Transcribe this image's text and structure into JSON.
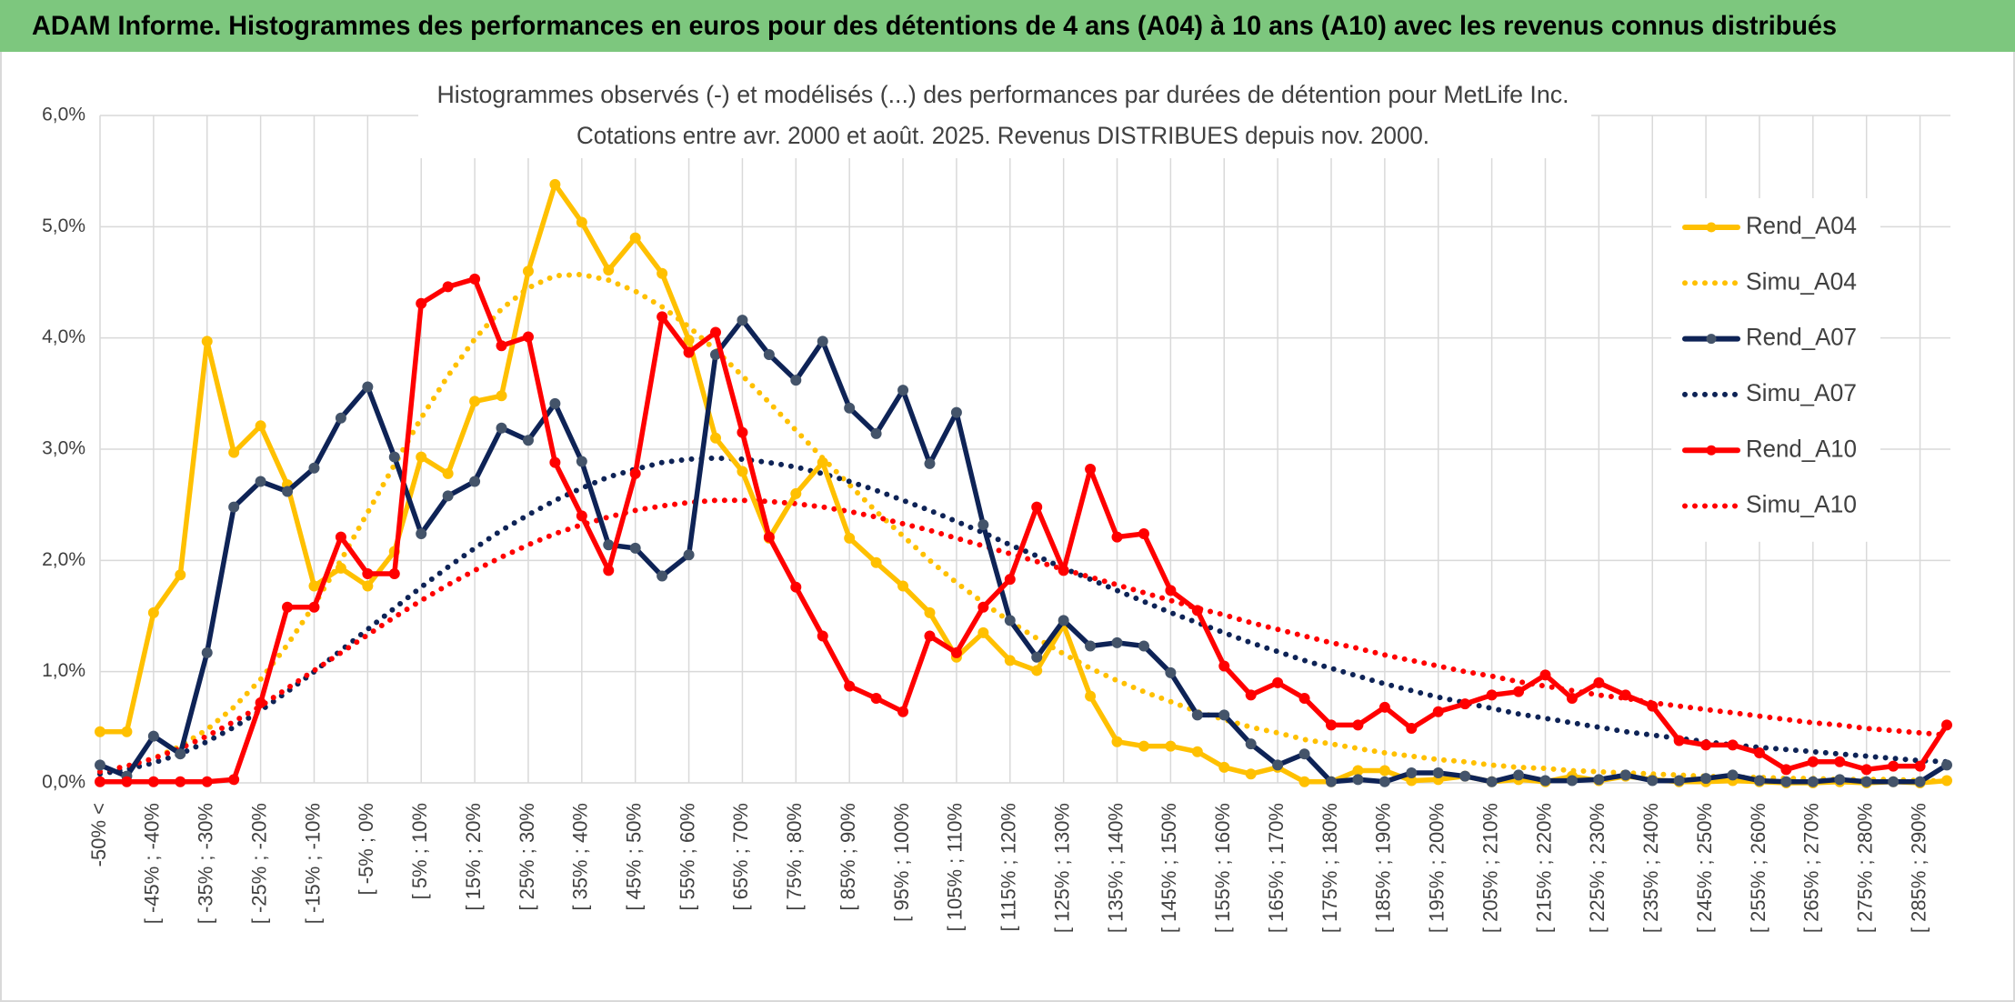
{
  "header": {
    "title": "ADAM Informe. Histogrammes des performances en euros pour des détentions de 4 ans (A04) à 10 ans (A10) avec les revenus connus distribués"
  },
  "chart_data": {
    "type": "line",
    "title": "Histogrammes observés (-) et modélisés (...) des performances par durées de détention pour MetLife Inc.",
    "subtitle": "Cotations entre avr. 2000 et août. 2025. Revenus DISTRIBUES depuis nov. 2000.",
    "categories": [
      "-50% <",
      null,
      "[ -45% ; -40%",
      null,
      "[ -35% ; -30%",
      null,
      "[ -25% ; -20%",
      null,
      "[ -15% ; -10%",
      null,
      "[ -5% ; 0%",
      null,
      "[ 5% ; 10%",
      null,
      "[ 15% ; 20%",
      null,
      "[ 25% ; 30%",
      null,
      "[ 35% ; 40%",
      null,
      "[ 45% ; 50%",
      null,
      "[ 55% ; 60%",
      null,
      "[ 65% ; 70%",
      null,
      "[ 75% ; 80%",
      null,
      "[ 85% ; 90%",
      null,
      "[ 95% ; 100%",
      null,
      "[ 105% ; 110%",
      null,
      "[ 115% ; 120%",
      null,
      "[ 125% ; 130%",
      null,
      "[ 135% ; 140%",
      null,
      "[ 145% ; 150%",
      null,
      "[ 155% ; 160%",
      null,
      "[ 165% ; 170%",
      null,
      "[ 175% ; 180%",
      null,
      "[ 185% ; 190%",
      null,
      "[ 195% ; 200%",
      null,
      "[ 205% ; 210%",
      null,
      "[ 215% ; 220%",
      null,
      "[ 225% ; 230%",
      null,
      "[ 235% ; 240%",
      null,
      "[ 245% ; 250%",
      null,
      "[ 255% ; 260%",
      null,
      "[ 265% ; 270%",
      null,
      "[ 275% ; 280%",
      null,
      "[ 285% ; 290%",
      null
    ],
    "ylim": [
      0,
      6
    ],
    "yticks": [
      {
        "value": 0,
        "label": "0,0%"
      },
      {
        "value": 1,
        "label": "1,0%"
      },
      {
        "value": 2,
        "label": "2,0%"
      },
      {
        "value": 3,
        "label": "3,0%"
      },
      {
        "value": 4,
        "label": "4,0%"
      },
      {
        "value": 5,
        "label": "5,0%"
      },
      {
        "value": 6,
        "label": "6,0%"
      }
    ],
    "grid": true,
    "legend": "right",
    "series": [
      {
        "name": "Rend_A04",
        "color": "#ffc000",
        "style": "solid",
        "values": [
          0.46,
          0.46,
          1.53,
          1.87,
          3.97,
          2.97,
          3.21,
          2.68,
          1.77,
          1.93,
          1.77,
          2.08,
          2.93,
          2.78,
          3.43,
          3.48,
          4.6,
          5.38,
          5.04,
          4.61,
          4.9,
          4.58,
          3.98,
          3.1,
          2.8,
          2.2,
          2.6,
          2.88,
          2.2,
          1.98,
          1.77,
          1.53,
          1.13,
          1.35,
          1.1,
          1.01,
          1.42,
          0.78,
          0.37,
          0.33,
          0.33,
          0.28,
          0.14,
          0.08,
          0.14,
          0.01,
          0.01,
          0.11,
          0.11,
          0.02,
          0.03,
          0.06,
          0.01,
          0.03,
          0.01,
          0.06,
          0.02,
          0.06,
          0.03,
          0.01,
          0.01,
          0.02,
          0.01,
          0,
          0,
          0.01,
          0,
          0.01,
          0,
          0.02
        ]
      },
      {
        "name": "Simu_A04",
        "color": "#ffc000",
        "style": "dotted",
        "values": [
          0.1,
          0.15,
          0.22,
          0.33,
          0.48,
          0.68,
          0.93,
          1.24,
          1.6,
          2.0,
          2.43,
          2.86,
          3.28,
          3.66,
          3.99,
          4.26,
          4.45,
          4.56,
          4.57,
          4.52,
          4.42,
          4.28,
          4.1,
          3.89,
          3.66,
          3.42,
          3.17,
          2.92,
          2.68,
          2.44,
          2.22,
          2.0,
          1.8,
          1.62,
          1.45,
          1.3,
          1.16,
          1.03,
          0.92,
          0.82,
          0.73,
          0.64,
          0.57,
          0.5,
          0.45,
          0.39,
          0.35,
          0.31,
          0.27,
          0.24,
          0.21,
          0.19,
          0.16,
          0.14,
          0.13,
          0.11,
          0.1,
          0.09,
          0.08,
          0.07,
          0.06,
          0.05,
          0.05,
          0.04,
          0.04,
          0.03,
          0.03,
          0.03,
          0.02,
          0.02
        ]
      },
      {
        "name": "Rend_A07",
        "color": "#0e2356",
        "style": "solid",
        "values": [
          0.16,
          0.06,
          0.42,
          0.26,
          1.17,
          2.48,
          2.71,
          2.62,
          2.83,
          3.28,
          3.56,
          2.93,
          2.24,
          2.58,
          2.71,
          3.19,
          3.08,
          3.41,
          2.89,
          2.14,
          2.11,
          1.86,
          2.05,
          3.85,
          4.16,
          3.85,
          3.62,
          3.97,
          3.37,
          3.14,
          3.53,
          2.87,
          3.33,
          2.32,
          1.46,
          1.13,
          1.46,
          1.23,
          1.26,
          1.23,
          0.99,
          0.61,
          0.61,
          0.35,
          0.16,
          0.26,
          0.01,
          0.03,
          0.01,
          0.09,
          0.09,
          0.06,
          0.01,
          0.07,
          0.02,
          0.02,
          0.03,
          0.07,
          0.02,
          0.02,
          0.04,
          0.07,
          0.02,
          0.01,
          0.01,
          0.03,
          0.01,
          0.01,
          0.01,
          0.16
        ]
      },
      {
        "name": "Simu_A07",
        "color": "#0e2356",
        "style": "dotted",
        "values": [
          0.08,
          0.12,
          0.18,
          0.26,
          0.37,
          0.5,
          0.65,
          0.82,
          1.0,
          1.19,
          1.38,
          1.57,
          1.76,
          1.94,
          2.11,
          2.27,
          2.41,
          2.54,
          2.65,
          2.75,
          2.82,
          2.88,
          2.91,
          2.92,
          2.91,
          2.88,
          2.84,
          2.78,
          2.71,
          2.63,
          2.54,
          2.45,
          2.35,
          2.25,
          2.14,
          2.04,
          1.93,
          1.83,
          1.73,
          1.63,
          1.53,
          1.44,
          1.35,
          1.26,
          1.18,
          1.1,
          1.03,
          0.96,
          0.89,
          0.83,
          0.77,
          0.72,
          0.67,
          0.62,
          0.58,
          0.54,
          0.5,
          0.46,
          0.43,
          0.4,
          0.37,
          0.34,
          0.32,
          0.3,
          0.28,
          0.26,
          0.24,
          0.22,
          0.2,
          0.19
        ]
      },
      {
        "name": "Rend_A10",
        "color": "#ff0000",
        "style": "solid",
        "values": [
          0.01,
          0.01,
          0.01,
          0.01,
          0.01,
          0.03,
          0.72,
          1.58,
          1.58,
          2.21,
          1.88,
          1.88,
          4.31,
          4.46,
          4.53,
          3.93,
          4.01,
          2.88,
          2.4,
          1.91,
          2.78,
          4.19,
          3.87,
          4.05,
          3.15,
          2.21,
          1.76,
          1.32,
          0.87,
          0.76,
          0.64,
          1.32,
          1.17,
          1.58,
          1.83,
          2.48,
          1.91,
          2.82,
          2.21,
          2.24,
          1.73,
          1.55,
          1.05,
          0.79,
          0.9,
          0.76,
          0.52,
          0.52,
          0.68,
          0.49,
          0.64,
          0.71,
          0.79,
          0.82,
          0.97,
          0.76,
          0.9,
          0.79,
          0.69,
          0.38,
          0.34,
          0.34,
          0.27,
          0.12,
          0.19,
          0.19,
          0.12,
          0.15,
          0.15,
          0.52
        ]
      },
      {
        "name": "Simu_A10",
        "color": "#ff0000",
        "style": "dotted",
        "values": [
          0.1,
          0.15,
          0.22,
          0.31,
          0.42,
          0.55,
          0.69,
          0.85,
          1.01,
          1.17,
          1.33,
          1.49,
          1.64,
          1.78,
          1.91,
          2.03,
          2.14,
          2.24,
          2.32,
          2.39,
          2.45,
          2.49,
          2.52,
          2.54,
          2.54,
          2.53,
          2.51,
          2.48,
          2.44,
          2.39,
          2.33,
          2.27,
          2.2,
          2.13,
          2.06,
          1.99,
          1.92,
          1.85,
          1.78,
          1.71,
          1.64,
          1.57,
          1.51,
          1.44,
          1.38,
          1.32,
          1.26,
          1.21,
          1.15,
          1.1,
          1.05,
          1.0,
          0.96,
          0.91,
          0.87,
          0.83,
          0.79,
          0.76,
          0.72,
          0.69,
          0.66,
          0.63,
          0.6,
          0.57,
          0.54,
          0.52,
          0.49,
          0.47,
          0.45,
          0.43
        ]
      }
    ]
  }
}
